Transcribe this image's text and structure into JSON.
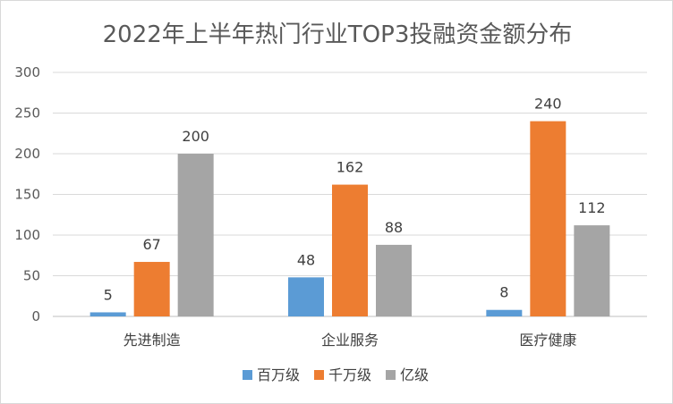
{
  "chart_data": {
    "type": "bar",
    "title": "2022年上半年热门行业TOP3投融资金额分布",
    "categories": [
      "先进制造",
      "企业服务",
      "医疗健康"
    ],
    "series": [
      {
        "name": "百万级",
        "values": [
          5,
          48,
          8
        ],
        "color": "#5b9bd5"
      },
      {
        "name": "千万级",
        "values": [
          67,
          162,
          240
        ],
        "color": "#ed7d31"
      },
      {
        "name": "亿级",
        "values": [
          200,
          88,
          112
        ],
        "color": "#a5a5a5"
      }
    ],
    "ylim": [
      0,
      300
    ],
    "yticks": [
      0,
      50,
      100,
      150,
      200,
      250,
      300
    ],
    "xlabel": "",
    "ylabel": "",
    "grid": true,
    "legend": "bottom"
  }
}
